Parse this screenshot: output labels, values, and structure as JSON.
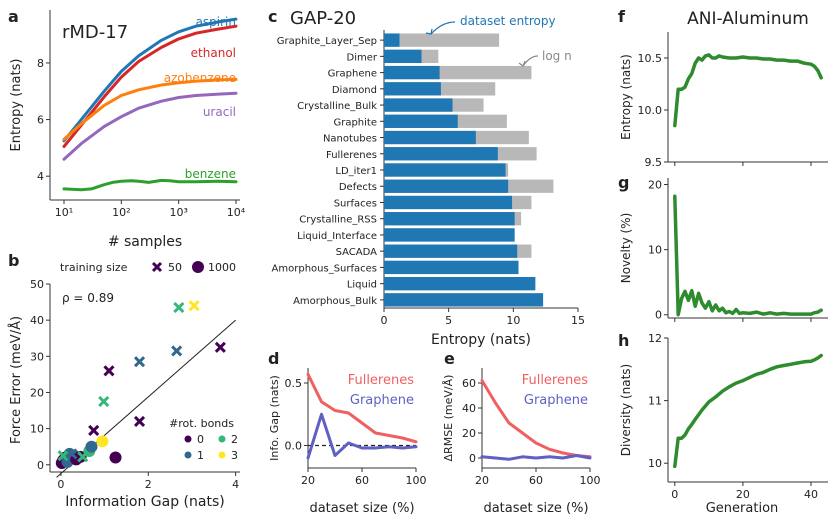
{
  "figure": {
    "panel_letters": [
      "a",
      "b",
      "c",
      "d",
      "e",
      "f",
      "g",
      "h"
    ]
  },
  "chart_data": [
    {
      "id": "a",
      "type": "line",
      "title": "rMD-17",
      "xlabel": "# samples",
      "ylabel": "Entropy (nats)",
      "xscale": "log",
      "xlim": [
        10,
        10000
      ],
      "ylim": [
        3.3,
        9.8
      ],
      "xticks": [
        10,
        100,
        1000,
        10000
      ],
      "xtick_labels": [
        "10¹",
        "10²",
        "10³",
        "10⁴"
      ],
      "yticks": [
        4,
        6,
        8
      ],
      "ytick_labels": [
        "4",
        "6",
        "8"
      ],
      "series": [
        {
          "name": "aspirin",
          "color": "#1f77b4",
          "x": [
            10,
            20,
            50,
            100,
            200,
            500,
            1000,
            2000,
            5000,
            10000
          ],
          "y": [
            5.25,
            6.0,
            7.0,
            7.7,
            8.25,
            8.8,
            9.1,
            9.3,
            9.45,
            9.55
          ]
        },
        {
          "name": "ethanol",
          "color": "#d62728",
          "x": [
            10,
            20,
            50,
            100,
            200,
            500,
            1000,
            2000,
            5000,
            10000
          ],
          "y": [
            5.05,
            5.8,
            6.8,
            7.5,
            8.05,
            8.55,
            8.85,
            9.05,
            9.2,
            9.3
          ]
        },
        {
          "name": "azobenzene",
          "color": "#ff7f0e",
          "x": [
            10,
            20,
            50,
            100,
            200,
            500,
            1000,
            2000,
            5000,
            10000
          ],
          "y": [
            5.3,
            5.85,
            6.5,
            6.85,
            7.05,
            7.22,
            7.3,
            7.36,
            7.4,
            7.42
          ]
        },
        {
          "name": "uracil",
          "color": "#9467bd",
          "x": [
            10,
            20,
            50,
            100,
            200,
            500,
            1000,
            2000,
            5000,
            10000
          ],
          "y": [
            4.6,
            5.15,
            5.75,
            6.1,
            6.4,
            6.65,
            6.78,
            6.85,
            6.9,
            6.93
          ]
        },
        {
          "name": "benzene",
          "color": "#2ca02c",
          "x": [
            10,
            20,
            30,
            50,
            70,
            100,
            150,
            200,
            300,
            500,
            700,
            1000,
            2000,
            5000,
            10000
          ],
          "y": [
            3.55,
            3.52,
            3.55,
            3.7,
            3.78,
            3.82,
            3.84,
            3.82,
            3.78,
            3.85,
            3.84,
            3.8,
            3.8,
            3.82,
            3.8
          ]
        }
      ]
    },
    {
      "id": "b",
      "type": "scatter",
      "xlabel": "Information Gap (nats)",
      "ylabel": "Force Error (meV/Å)",
      "xlim": [
        -0.25,
        4.1
      ],
      "ylim": [
        -2,
        50
      ],
      "xticks": [
        0,
        2,
        4
      ],
      "yticks": [
        0,
        10,
        20,
        30,
        40,
        50
      ],
      "annotation": "ρ = 0.89",
      "fit_line": {
        "x": [
          -0.1,
          4.0
        ],
        "y": [
          -3.5,
          40
        ]
      },
      "legend_size": {
        "title": "training size",
        "entries": [
          {
            "marker": "x",
            "label": "50"
          },
          {
            "marker": "circle",
            "label": "1000"
          }
        ]
      },
      "legend_color": {
        "title": "#rot. bonds",
        "entries": [
          {
            "label": "0",
            "color": "#440154"
          },
          {
            "label": "1",
            "color": "#31688e"
          },
          {
            "label": "2",
            "color": "#35b779"
          },
          {
            "label": "3",
            "color": "#fde725"
          }
        ]
      },
      "points": [
        {
          "x": 0.02,
          "y": 0.5,
          "marker": "circle",
          "bonds": 0
        },
        {
          "x": 0.05,
          "y": 1.2,
          "marker": "circle",
          "bonds": 0
        },
        {
          "x": 0.1,
          "y": 2.0,
          "marker": "circle",
          "bonds": 0
        },
        {
          "x": 0.15,
          "y": 0.8,
          "marker": "circle",
          "bonds": 1
        },
        {
          "x": 0.2,
          "y": 3.0,
          "marker": "circle",
          "bonds": 1
        },
        {
          "x": 0.3,
          "y": 2.5,
          "marker": "circle",
          "bonds": 1
        },
        {
          "x": 0.35,
          "y": 1.5,
          "marker": "circle",
          "bonds": 0
        },
        {
          "x": 0.45,
          "y": 2.2,
          "marker": "circle",
          "bonds": 0
        },
        {
          "x": 0.65,
          "y": 3.8,
          "marker": "circle",
          "bonds": 2
        },
        {
          "x": 0.7,
          "y": 5.0,
          "marker": "circle",
          "bonds": 1
        },
        {
          "x": 0.95,
          "y": 6.5,
          "marker": "circle",
          "bonds": 3
        },
        {
          "x": 1.25,
          "y": 2.0,
          "marker": "circle",
          "bonds": 0
        },
        {
          "x": 0.05,
          "y": 2.5,
          "marker": "x",
          "bonds": 2
        },
        {
          "x": 0.25,
          "y": 3.0,
          "marker": "x",
          "bonds": 1
        },
        {
          "x": 0.5,
          "y": 2.2,
          "marker": "x",
          "bonds": 2
        },
        {
          "x": 0.75,
          "y": 9.5,
          "marker": "x",
          "bonds": 0
        },
        {
          "x": 0.98,
          "y": 17.5,
          "marker": "x",
          "bonds": 2
        },
        {
          "x": 1.1,
          "y": 26.0,
          "marker": "x",
          "bonds": 0
        },
        {
          "x": 1.8,
          "y": 28.5,
          "marker": "x",
          "bonds": 1
        },
        {
          "x": 1.8,
          "y": 12.0,
          "marker": "x",
          "bonds": 0
        },
        {
          "x": 2.65,
          "y": 31.5,
          "marker": "x",
          "bonds": 1
        },
        {
          "x": 2.7,
          "y": 43.5,
          "marker": "x",
          "bonds": 2
        },
        {
          "x": 3.05,
          "y": 44.0,
          "marker": "x",
          "bonds": 3
        },
        {
          "x": 3.65,
          "y": 32.5,
          "marker": "x",
          "bonds": 0
        }
      ]
    },
    {
      "id": "c",
      "type": "bar",
      "orientation": "horizontal",
      "title": "GAP-20",
      "xlabel": "Entropy (nats)",
      "xlim": [
        0,
        15
      ],
      "xticks": [
        0,
        5,
        10,
        15
      ],
      "annotations": [
        "dataset entropy",
        "log n"
      ],
      "categories": [
        "Graphite_Layer_Sep",
        "Dimer",
        "Graphene",
        "Diamond",
        "Crystalline_Bulk",
        "Graphite",
        "Nanotubes",
        "Fullerenes",
        "LD_iter1",
        "Defects",
        "Surfaces",
        "Crystalline_RSS",
        "Liquid_Interface",
        "SACADA",
        "Amorphous_Surfaces",
        "Liquid",
        "Amorphous_Bulk"
      ],
      "series": [
        {
          "name": "dataset entropy",
          "color": "#1f77b4",
          "values": [
            1.2,
            2.9,
            4.3,
            4.4,
            5.3,
            5.7,
            7.1,
            8.8,
            9.4,
            9.6,
            9.9,
            10.1,
            10.1,
            10.3,
            10.4,
            11.7,
            12.3
          ]
        },
        {
          "name": "log n",
          "color": "#b8b8b8",
          "values": [
            8.9,
            4.2,
            11.4,
            8.6,
            7.7,
            9.5,
            11.2,
            11.8,
            9.6,
            13.1,
            11.4,
            10.6,
            10.1,
            11.4,
            10.4,
            11.7,
            12.3
          ]
        }
      ]
    },
    {
      "id": "d",
      "type": "line",
      "xlabel": "dataset size (%)",
      "ylabel": "Info. Gap (nats)",
      "xlim": [
        20,
        100
      ],
      "ylim": [
        -0.18,
        0.62
      ],
      "xticks": [
        20,
        60,
        100
      ],
      "yticks": [
        0.0,
        0.5
      ],
      "ytick_labels": [
        "0.0",
        "0.5"
      ],
      "zero_line": true,
      "series": [
        {
          "name": "Fullerenes",
          "color": "#f06060",
          "x": [
            20,
            30,
            40,
            50,
            60,
            70,
            80,
            90,
            100
          ],
          "y": [
            0.57,
            0.35,
            0.28,
            0.26,
            0.18,
            0.1,
            0.08,
            0.06,
            0.03
          ]
        },
        {
          "name": "Graphene",
          "color": "#5f5fc4",
          "x": [
            20,
            30,
            40,
            50,
            60,
            70,
            80,
            90,
            100
          ],
          "y": [
            -0.1,
            0.25,
            -0.08,
            0.02,
            -0.02,
            -0.02,
            -0.01,
            -0.02,
            -0.01
          ]
        }
      ]
    },
    {
      "id": "e",
      "type": "line",
      "xlabel": "dataset size (%)",
      "ylabel": "ΔRMSE (meV/Å)",
      "xlim": [
        20,
        100
      ],
      "ylim": [
        -8,
        72
      ],
      "xticks": [
        20,
        60,
        100
      ],
      "yticks": [
        0,
        20,
        40,
        60
      ],
      "series": [
        {
          "name": "Fullerenes",
          "color": "#f06060",
          "x": [
            20,
            30,
            40,
            50,
            60,
            70,
            80,
            90,
            100
          ],
          "y": [
            62,
            44,
            28,
            20,
            12,
            7,
            4,
            2,
            1
          ]
        },
        {
          "name": "Graphene",
          "color": "#5f5fc4",
          "x": [
            20,
            30,
            40,
            50,
            60,
            70,
            80,
            90,
            100
          ],
          "y": [
            1,
            0,
            -1,
            1,
            0,
            1,
            0,
            2,
            0
          ]
        }
      ]
    },
    {
      "id": "f",
      "type": "line",
      "title": "ANI-Aluminum",
      "ylabel": "Entropy (nats)",
      "xlim": [
        -2,
        45
      ],
      "ylim": [
        9.5,
        10.75
      ],
      "yticks": [
        9.5,
        10.0,
        10.5
      ],
      "ytick_labels": [
        "9.5",
        "10.0",
        "10.5"
      ],
      "series": [
        {
          "name": "entropy",
          "color": "#2e8b2e",
          "x": [
            0,
            1,
            2,
            3,
            4,
            5,
            6,
            7,
            8,
            9,
            10,
            11,
            12,
            13,
            14,
            16,
            18,
            20,
            22,
            24,
            26,
            28,
            30,
            32,
            34,
            36,
            38,
            40,
            41,
            42,
            43
          ],
          "y": [
            9.85,
            10.2,
            10.2,
            10.22,
            10.3,
            10.35,
            10.45,
            10.5,
            10.48,
            10.52,
            10.53,
            10.5,
            10.5,
            10.52,
            10.51,
            10.5,
            10.5,
            10.51,
            10.5,
            10.5,
            10.49,
            10.49,
            10.48,
            10.48,
            10.47,
            10.47,
            10.45,
            10.44,
            10.42,
            10.38,
            10.31
          ]
        }
      ]
    },
    {
      "id": "g",
      "type": "line",
      "ylabel": "Novelty (%)",
      "xlim": [
        -2,
        45
      ],
      "ylim": [
        -0.5,
        21
      ],
      "yticks": [
        0,
        10,
        20
      ],
      "series": [
        {
          "name": "novelty",
          "color": "#2e8b2e",
          "x": [
            0,
            1,
            2,
            3,
            4,
            5,
            6,
            7,
            8,
            9,
            10,
            11,
            12,
            13,
            14,
            15,
            16,
            17,
            18,
            19,
            20,
            22,
            24,
            26,
            28,
            30,
            32,
            34,
            36,
            38,
            40,
            41,
            42,
            43
          ],
          "y": [
            18.2,
            0.0,
            2.5,
            3.6,
            2.2,
            3.7,
            1.3,
            3.3,
            1.8,
            1.0,
            2.0,
            0.6,
            1.5,
            0.6,
            1.0,
            0.3,
            0.5,
            0.2,
            0.8,
            0.2,
            0.3,
            0.2,
            0.4,
            0.1,
            0.3,
            0.1,
            0.2,
            0.1,
            0.1,
            0.1,
            0.1,
            0.3,
            0.4,
            0.7
          ]
        }
      ]
    },
    {
      "id": "h",
      "type": "line",
      "xlabel": "Generation",
      "ylabel": "Diversity (nats)",
      "xlim": [
        -2,
        45
      ],
      "ylim": [
        9.7,
        12.0
      ],
      "xticks": [
        0,
        20,
        40
      ],
      "yticks": [
        10,
        11,
        12
      ],
      "series": [
        {
          "name": "diversity",
          "color": "#2e8b2e",
          "x": [
            0,
            1,
            2,
            3,
            4,
            5,
            6,
            8,
            10,
            12,
            14,
            16,
            18,
            20,
            22,
            24,
            26,
            28,
            30,
            32,
            34,
            36,
            38,
            40,
            41,
            42,
            43
          ],
          "y": [
            9.95,
            10.4,
            10.4,
            10.45,
            10.55,
            10.62,
            10.7,
            10.85,
            10.98,
            11.06,
            11.15,
            11.22,
            11.28,
            11.32,
            11.37,
            11.42,
            11.45,
            11.5,
            11.54,
            11.56,
            11.58,
            11.6,
            11.62,
            11.63,
            11.65,
            11.68,
            11.72
          ]
        }
      ]
    }
  ]
}
